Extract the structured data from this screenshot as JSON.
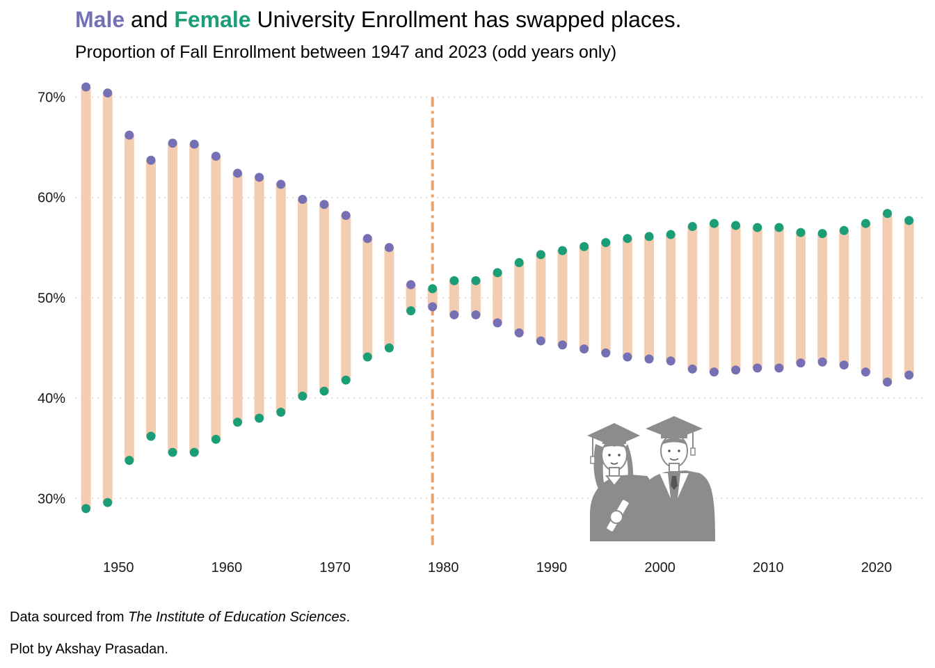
{
  "title": {
    "male_word": "Male",
    "and_word": "and",
    "female_word": "Female",
    "rest": "University Enrollment has swapped places."
  },
  "subtitle": "Proportion of Fall Enrollment between 1947 and 2023 (odd years only)",
  "caption": {
    "source_prefix": "Data sourced from ",
    "source_name": "The Institute of Education Sciences",
    "source_suffix": ".",
    "credit": "Plot by Akshay Prasadan."
  },
  "colors": {
    "male": "#7570b3",
    "female": "#1b9e77",
    "segment": "#f4cdb0",
    "marker_line": "#e9a36e",
    "grid": "#d9d9d9",
    "icon": "#8c8c8c"
  },
  "illustration": "graduates-icon",
  "chart_data": {
    "type": "dumbbell",
    "x": [
      1947,
      1949,
      1951,
      1953,
      1955,
      1957,
      1959,
      1961,
      1963,
      1965,
      1967,
      1969,
      1971,
      1973,
      1975,
      1977,
      1979,
      1981,
      1983,
      1985,
      1987,
      1989,
      1991,
      1993,
      1995,
      1997,
      1999,
      2001,
      2003,
      2005,
      2007,
      2009,
      2011,
      2013,
      2015,
      2017,
      2019,
      2021,
      2023
    ],
    "series": [
      {
        "name": "Male",
        "values": [
          71.0,
          70.4,
          66.2,
          63.7,
          65.4,
          65.3,
          64.1,
          62.4,
          62.0,
          61.3,
          59.8,
          59.3,
          58.2,
          55.9,
          55.0,
          51.3,
          49.1,
          48.3,
          48.3,
          47.5,
          46.5,
          45.7,
          45.3,
          44.9,
          44.5,
          44.1,
          43.9,
          43.7,
          42.9,
          42.6,
          42.8,
          43.0,
          43.0,
          43.5,
          43.6,
          43.3,
          42.6,
          41.6,
          42.3
        ]
      },
      {
        "name": "Female",
        "values": [
          29.0,
          29.6,
          33.8,
          36.2,
          34.6,
          34.6,
          35.9,
          37.6,
          38.0,
          38.6,
          40.2,
          40.7,
          41.8,
          44.1,
          45.0,
          48.7,
          50.9,
          51.7,
          51.7,
          52.5,
          53.5,
          54.3,
          54.7,
          55.1,
          55.5,
          55.9,
          56.1,
          56.3,
          57.1,
          57.4,
          57.2,
          57.0,
          57.0,
          56.5,
          56.4,
          56.7,
          57.4,
          58.4,
          57.7
        ]
      }
    ],
    "x_ticks": [
      1950,
      1960,
      1970,
      1980,
      1990,
      2000,
      2010,
      2020
    ],
    "y_ticks": [
      30,
      40,
      50,
      60,
      70
    ],
    "y_tick_labels": [
      "30%",
      "40%",
      "50%",
      "60%",
      "70%"
    ],
    "xlim": [
      1946,
      2024.5
    ],
    "ylim": [
      24.9,
      71.9
    ],
    "reference_line_x": 1979,
    "grid": "horizontal dotted"
  }
}
